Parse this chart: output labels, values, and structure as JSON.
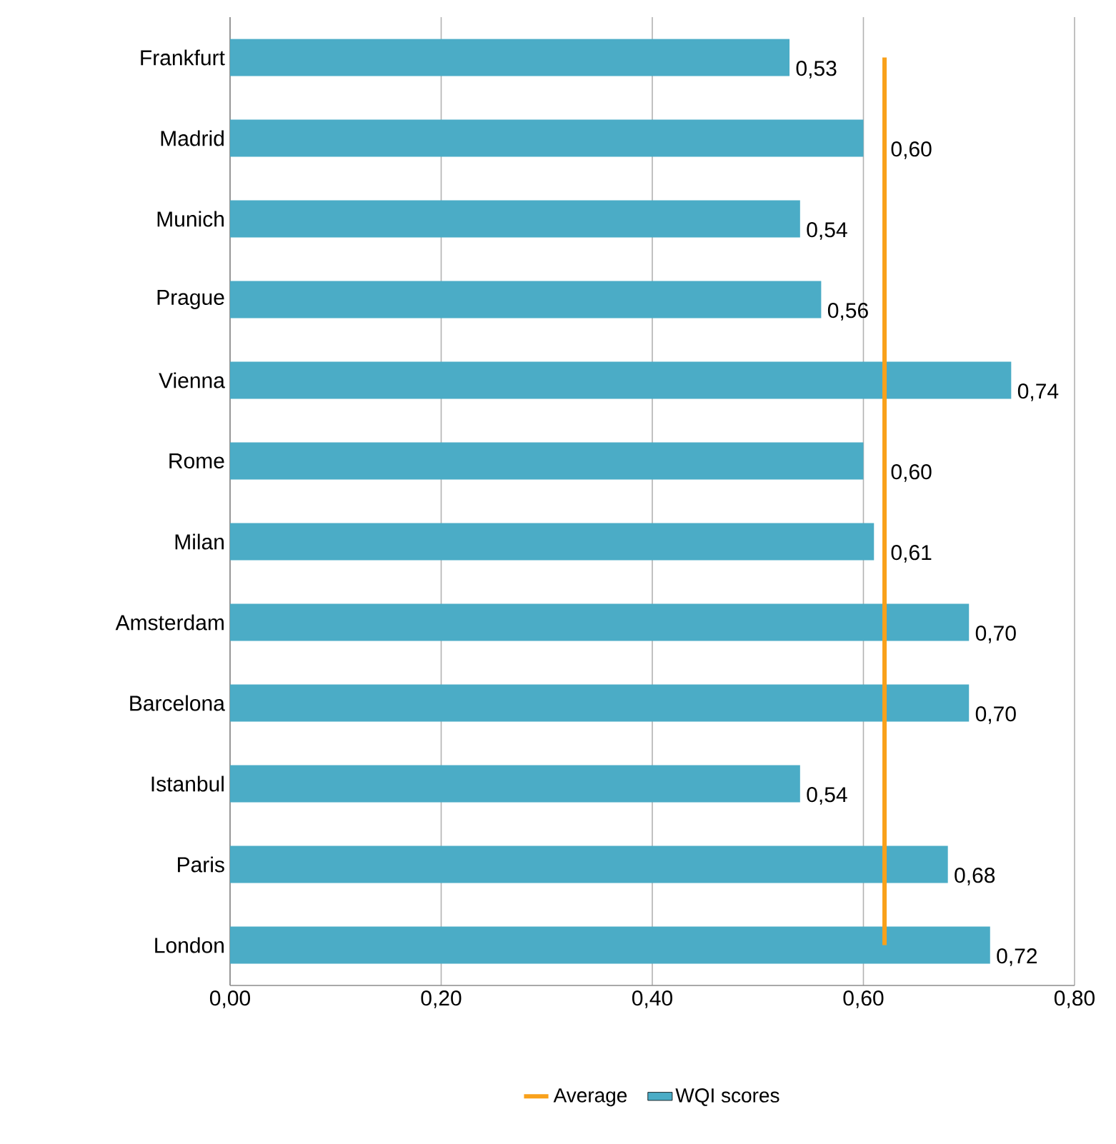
{
  "chart_data": {
    "type": "bar",
    "orientation": "horizontal",
    "categories": [
      "Frankfurt",
      "Madrid",
      "Munich",
      "Prague",
      "Vienna",
      "Rome",
      "Milan",
      "Amsterdam",
      "Barcelona",
      "Istanbul",
      "Paris",
      "London"
    ],
    "series": [
      {
        "name": "WQI scores",
        "color": "#4bacc6",
        "values": [
          0.53,
          0.6,
          0.54,
          0.56,
          0.74,
          0.6,
          0.61,
          0.7,
          0.7,
          0.54,
          0.68,
          0.72
        ],
        "value_labels": [
          "0,53",
          "0,60",
          "0,54",
          "0,56",
          "0,74",
          "0,60",
          "0,61",
          "0,70",
          "0,70",
          "0,54",
          "0,68",
          "0,72"
        ]
      }
    ],
    "xlim": [
      0,
      0.8
    ],
    "xticks": [
      {
        "value": 0,
        "label": "0,00"
      },
      {
        "value": 0.2,
        "label": "0,20"
      },
      {
        "value": 0.4,
        "label": "0,40"
      },
      {
        "value": 0.6,
        "label": "0,60"
      },
      {
        "value": 0.8,
        "label": "0,80"
      }
    ],
    "ref_lines": [
      {
        "axis": "x",
        "value": 0.62,
        "label": "Average",
        "color": "#f9a11b"
      }
    ],
    "grid": "x",
    "legend": "bottom"
  }
}
